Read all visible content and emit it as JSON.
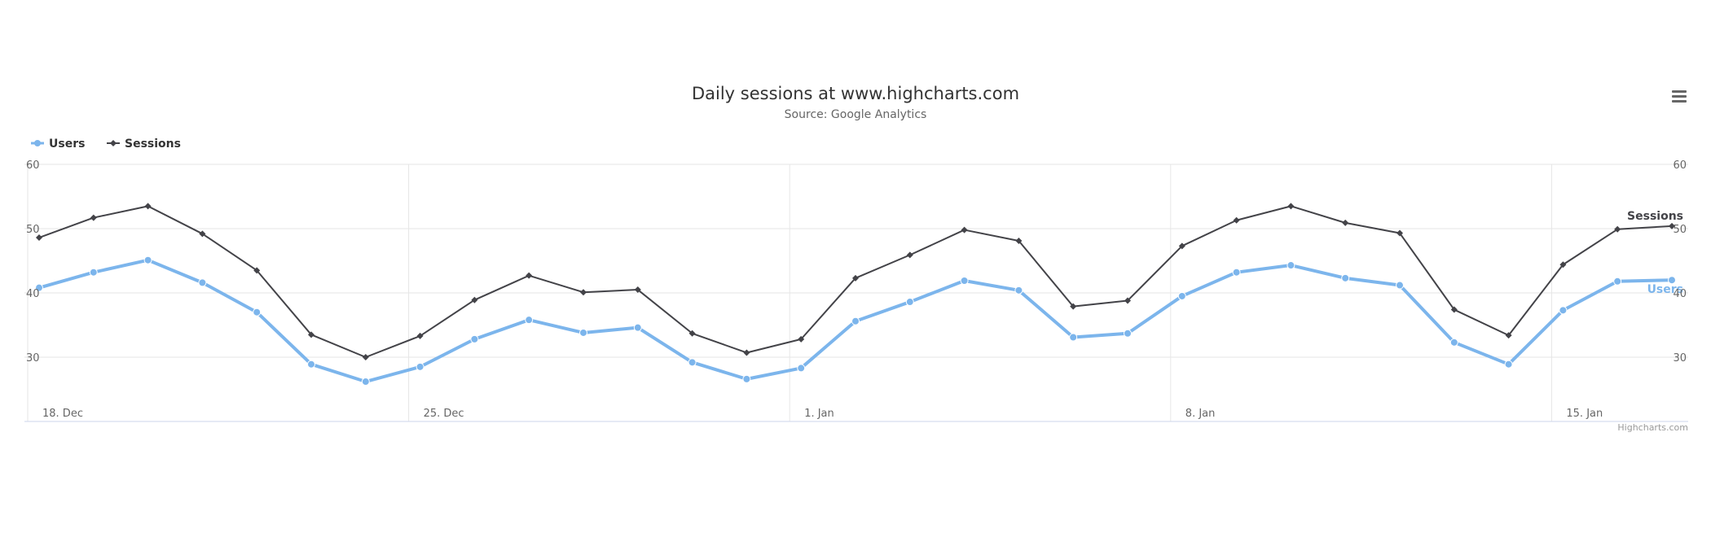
{
  "chart_data": {
    "type": "line",
    "title": "Daily sessions at www.highcharts.com",
    "subtitle": "Source: Google Analytics",
    "x_tick_labels": [
      "18. Dec",
      "25. Dec",
      "1. Jan",
      "8. Jan",
      "15. Jan"
    ],
    "x_tick_indices": [
      0,
      7,
      14,
      21,
      28
    ],
    "x_range_days": [
      0,
      30
    ],
    "ylim": [
      20,
      60
    ],
    "y_ticks": [
      30,
      40,
      50,
      60
    ],
    "legend_position": "top-left",
    "grid": true,
    "series": [
      {
        "name": "Users",
        "color": "#7cb5ec",
        "marker": "circle",
        "values": [
          40.8,
          43.2,
          45.1,
          41.6,
          37.0,
          28.9,
          26.2,
          28.5,
          32.8,
          35.8,
          33.8,
          34.6,
          29.2,
          26.6,
          28.3,
          35.6,
          38.6,
          41.9,
          40.4,
          33.1,
          33.7,
          39.5,
          43.2,
          44.3,
          42.3,
          41.2,
          32.3,
          28.9,
          37.3,
          41.8,
          42.0
        ]
      },
      {
        "name": "Sessions",
        "color": "#434348",
        "marker": "diamond",
        "values": [
          48.6,
          51.7,
          53.5,
          49.2,
          43.5,
          33.5,
          30.0,
          33.3,
          38.9,
          42.7,
          40.1,
          40.5,
          33.7,
          30.7,
          32.8,
          42.3,
          45.9,
          49.8,
          48.1,
          37.9,
          38.8,
          47.3,
          51.3,
          53.5,
          50.9,
          49.3,
          37.4,
          33.4,
          44.4,
          49.9,
          50.4
        ]
      }
    ]
  },
  "credits": "Highcharts.com",
  "icons": {
    "menu": "hamburger-menu-icon"
  }
}
